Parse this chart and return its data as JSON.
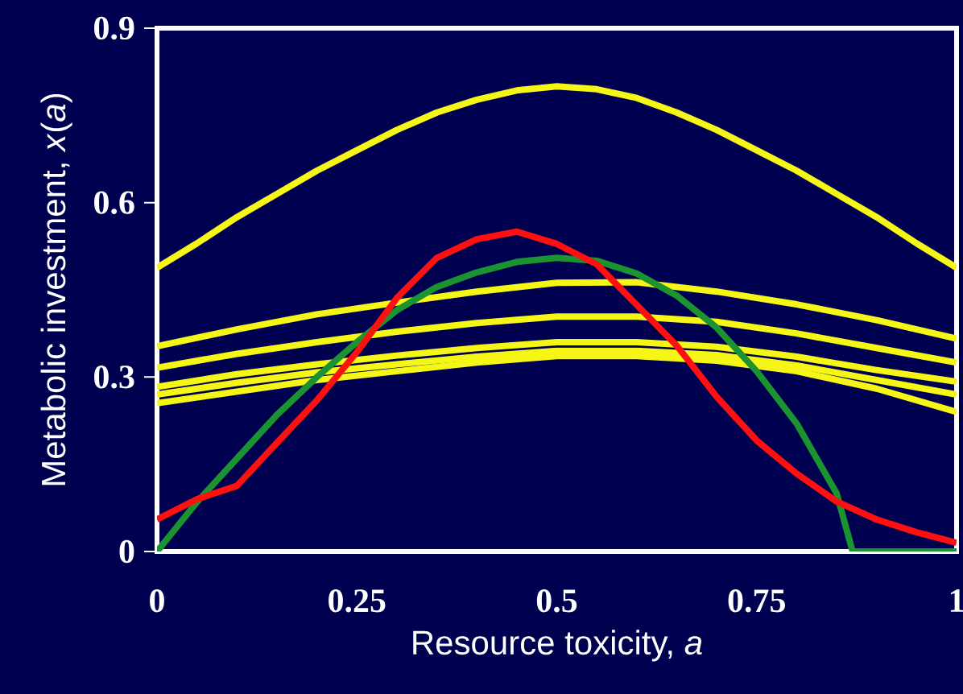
{
  "chart_data": {
    "type": "line",
    "xlabel": "Resource toxicity, *a*",
    "ylabel": "Metabolic investment, *x*(*a*)",
    "xlim": [
      0,
      1
    ],
    "ylim": [
      0,
      0.9
    ],
    "xticks": [
      0,
      0.25,
      0.5,
      0.75,
      1
    ],
    "yticks": [
      0,
      0.3,
      0.6,
      0.9
    ],
    "marker": "none",
    "grid": false,
    "legend": false,
    "series": [
      {
        "color": "#f5f516",
        "x": [
          0,
          0.05,
          0.1,
          0.15,
          0.2,
          0.25,
          0.3,
          0.35,
          0.4,
          0.45,
          0.5,
          0.55,
          0.6,
          0.65,
          0.7,
          0.75,
          0.8,
          0.85,
          0.9,
          0.95,
          1
        ],
        "values": [
          0.488,
          0.53,
          0.575,
          0.615,
          0.655,
          0.69,
          0.725,
          0.755,
          0.777,
          0.793,
          0.8,
          0.795,
          0.78,
          0.755,
          0.725,
          0.69,
          0.655,
          0.615,
          0.575,
          0.53,
          0.488
        ]
      },
      {
        "color": "#f5f516",
        "x": [
          0,
          0.1,
          0.2,
          0.3,
          0.4,
          0.5,
          0.6,
          0.7,
          0.8,
          0.9,
          1
        ],
        "values": [
          0.353,
          0.382,
          0.408,
          0.428,
          0.447,
          0.462,
          0.463,
          0.447,
          0.425,
          0.398,
          0.366
        ]
      },
      {
        "color": "#f5f516",
        "x": [
          0,
          0.1,
          0.2,
          0.3,
          0.4,
          0.5,
          0.6,
          0.7,
          0.8,
          0.9,
          1
        ],
        "values": [
          0.316,
          0.34,
          0.36,
          0.378,
          0.393,
          0.404,
          0.404,
          0.395,
          0.375,
          0.35,
          0.325
        ]
      },
      {
        "color": "#f5f516",
        "x": [
          0,
          0.1,
          0.2,
          0.3,
          0.4,
          0.5,
          0.6,
          0.7,
          0.8,
          0.9,
          1
        ],
        "values": [
          0.283,
          0.305,
          0.322,
          0.337,
          0.35,
          0.36,
          0.36,
          0.352,
          0.335,
          0.312,
          0.292
        ]
      },
      {
        "color": "#f5f516",
        "x": [
          0,
          0.1,
          0.2,
          0.3,
          0.4,
          0.5,
          0.6,
          0.7,
          0.8,
          0.9,
          1
        ],
        "values": [
          0.27,
          0.29,
          0.308,
          0.322,
          0.335,
          0.345,
          0.345,
          0.338,
          0.32,
          0.295,
          0.27
        ]
      },
      {
        "color": "#f5f516",
        "x": [
          0,
          0.1,
          0.2,
          0.3,
          0.4,
          0.5,
          0.6,
          0.7,
          0.8,
          0.9,
          1
        ],
        "values": [
          0.255,
          0.275,
          0.295,
          0.31,
          0.325,
          0.336,
          0.336,
          0.328,
          0.31,
          0.28,
          0.24
        ]
      },
      {
        "color": "#1a9330",
        "x": [
          0,
          0.05,
          0.1,
          0.15,
          0.2,
          0.25,
          0.3,
          0.35,
          0.4,
          0.45,
          0.5,
          0.55,
          0.6,
          0.65,
          0.7,
          0.75,
          0.8,
          0.85,
          0.87,
          1
        ],
        "values": [
          0,
          0.085,
          0.16,
          0.235,
          0.3,
          0.36,
          0.415,
          0.455,
          0.48,
          0.498,
          0.505,
          0.5,
          0.478,
          0.44,
          0.385,
          0.31,
          0.22,
          0.1,
          0,
          0
        ]
      },
      {
        "color": "#ff1010",
        "x": [
          0,
          0.05,
          0.1,
          0.15,
          0.2,
          0.25,
          0.3,
          0.35,
          0.4,
          0.45,
          0.5,
          0.55,
          0.6,
          0.65,
          0.7,
          0.75,
          0.8,
          0.85,
          0.9,
          0.95,
          1
        ],
        "values": [
          0.055,
          0.09,
          0.113,
          0.187,
          0.26,
          0.343,
          0.436,
          0.505,
          0.537,
          0.55,
          0.529,
          0.494,
          0.424,
          0.354,
          0.266,
          0.191,
          0.134,
          0.086,
          0.055,
          0.033,
          0.015
        ]
      }
    ]
  }
}
